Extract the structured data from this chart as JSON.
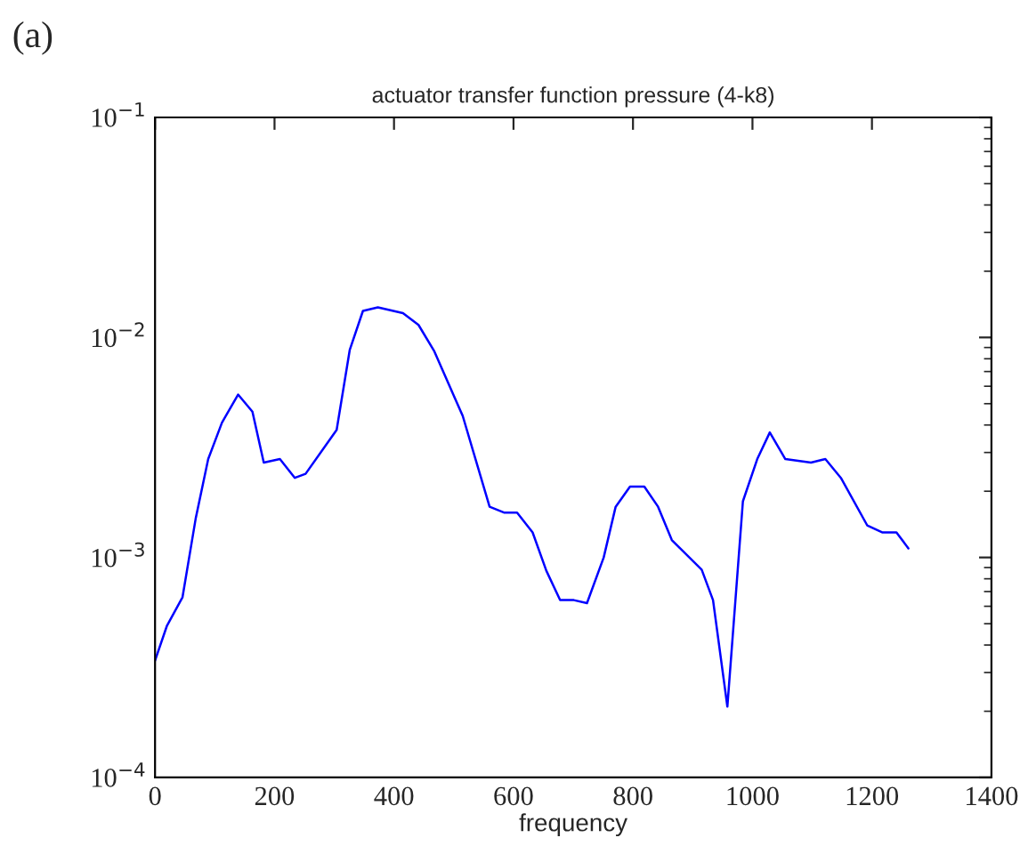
{
  "chart_data": {
    "type": "line",
    "title": "actuator transfer function pressure (4-k8)",
    "xlabel": "frequency",
    "annotations": [
      "(a)"
    ],
    "log": "y",
    "xlim": [
      0,
      1400
    ],
    "xticks": [
      0,
      200,
      400,
      600,
      800,
      1000,
      1200,
      1400
    ],
    "ylim": [
      0.0001,
      0.1
    ],
    "yticks": [
      {
        "value": 0.0001,
        "label": "10$^{−4}$"
      },
      {
        "value": 0.001,
        "label": "10$^{−3}$"
      },
      {
        "value": 0.01,
        "label": "10$^{−2}$"
      },
      {
        "value": 0.1,
        "label": "10$^{−1}$"
      }
    ],
    "grid": false,
    "legend": false,
    "marker": "none",
    "line_style": "solid",
    "series": [
      {
        "color": "#0000ff",
        "x": [
          0,
          20,
          46,
          68,
          89,
          112,
          139,
          163,
          182,
          209,
          234,
          252,
          304,
          326,
          348,
          373,
          415,
          441,
          467,
          515,
          560,
          584,
          606,
          632,
          655,
          678,
          701,
          723,
          751,
          771,
          795,
          819,
          842,
          865,
          915,
          934,
          958,
          984,
          1008,
          1029,
          1055,
          1098,
          1122,
          1148,
          1192,
          1217,
          1241,
          1261
        ],
        "values": [
          0.00034,
          0.00049,
          0.00066,
          0.0015,
          0.0028,
          0.0041,
          0.0055,
          0.0046,
          0.0027,
          0.0028,
          0.0023,
          0.0024,
          0.0038,
          0.0088,
          0.0132,
          0.0137,
          0.0129,
          0.0114,
          0.0087,
          0.0044,
          0.0017,
          0.0016,
          0.0016,
          0.0013,
          0.00087,
          0.00064,
          0.00064,
          0.00062,
          0.001,
          0.0017,
          0.0021,
          0.0021,
          0.0017,
          0.0012,
          0.00088,
          0.00064,
          0.00021,
          0.0018,
          0.0028,
          0.0037,
          0.0028,
          0.0027,
          0.0028,
          0.0023,
          0.0014,
          0.0013,
          0.0013,
          0.0011
        ]
      }
    ]
  }
}
